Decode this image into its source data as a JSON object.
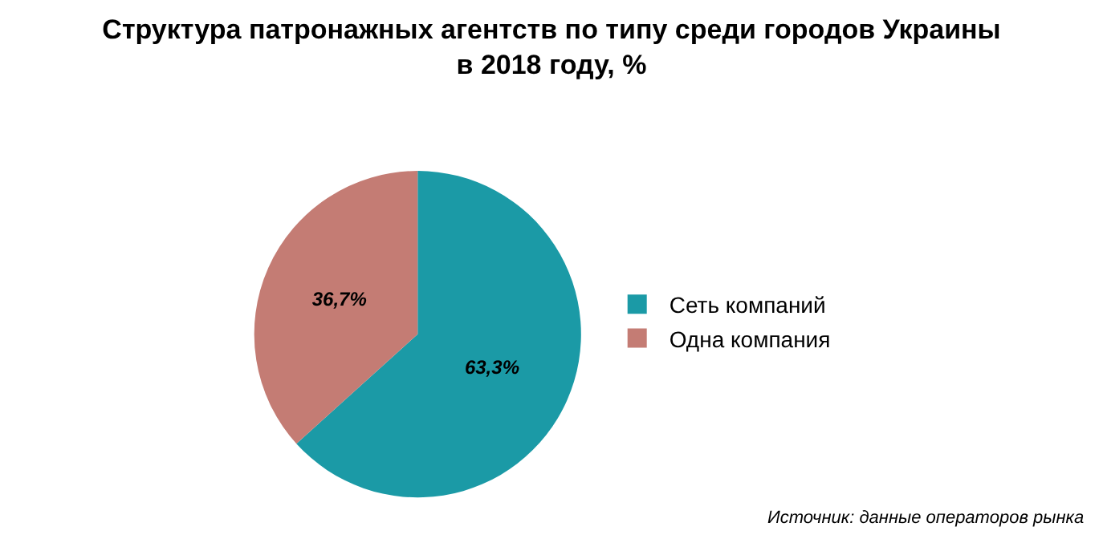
{
  "chart_data": {
    "type": "pie",
    "title": "Структура патронажных агентств по типу среди городов Украины\nв 2018 году, %",
    "categories": [
      "Сеть компаний",
      "Одна компания"
    ],
    "values": [
      63.3,
      36.7
    ],
    "value_labels": [
      "63,3%",
      "36,7%"
    ],
    "colors": [
      "#1b9aa6",
      "#c47c74"
    ],
    "legend": "right",
    "annotations": [
      "Источник: данные операторов рынка"
    ]
  }
}
